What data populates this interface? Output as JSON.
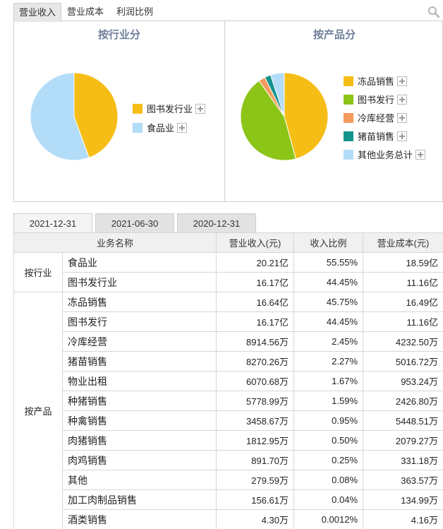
{
  "top_tabs": [
    "营业收入",
    "营业成本",
    "利润比例"
  ],
  "date_tabs": [
    "2021-12-31",
    "2021-06-30",
    "2020-12-31"
  ],
  "chart_data": [
    {
      "type": "pie",
      "title": "按行业分",
      "labels": [
        "图书发行业",
        "食品业"
      ],
      "values": [
        44.45,
        55.55
      ],
      "colors": [
        "#f6bd16",
        "#b3dcf8"
      ]
    },
    {
      "type": "pie",
      "title": "按产品分",
      "labels": [
        "冻品销售",
        "图书发行",
        "冷库经营",
        "猪苗销售",
        "其他业务总计"
      ],
      "values": [
        45.75,
        44.45,
        2.45,
        2.27,
        5.08
      ],
      "colors": [
        "#f6bd16",
        "#8cc417",
        "#f59a5e",
        "#14938c",
        "#b3dcf8"
      ]
    }
  ],
  "table": {
    "headers": [
      "业务名称",
      "营业收入(元)",
      "收入比例",
      "营业成本(元)"
    ],
    "groups": [
      {
        "label": "按行业",
        "rows": [
          [
            "食品业",
            "20.21亿",
            "55.55%",
            "18.59亿"
          ],
          [
            "图书发行业",
            "16.17亿",
            "44.45%",
            "11.16亿"
          ]
        ]
      },
      {
        "label": "按产品",
        "rows": [
          [
            "冻品销售",
            "16.64亿",
            "45.75%",
            "16.49亿"
          ],
          [
            "图书发行",
            "16.17亿",
            "44.45%",
            "11.16亿"
          ],
          [
            "冷库经营",
            "8914.56万",
            "2.45%",
            "4232.50万"
          ],
          [
            "猪苗销售",
            "8270.26万",
            "2.27%",
            "5016.72万"
          ],
          [
            "物业出租",
            "6070.68万",
            "1.67%",
            "953.24万"
          ],
          [
            "种猪销售",
            "5778.99万",
            "1.59%",
            "2426.80万"
          ],
          [
            "种禽销售",
            "3458.67万",
            "0.95%",
            "5448.51万"
          ],
          [
            "肉猪销售",
            "1812.95万",
            "0.50%",
            "2079.27万"
          ],
          [
            "肉鸡销售",
            "891.70万",
            "0.25%",
            "331.18万"
          ],
          [
            "其他",
            "279.59万",
            "0.08%",
            "363.57万"
          ],
          [
            "加工肉制品销售",
            "156.61万",
            "0.04%",
            "134.99万"
          ],
          [
            "酒类销售",
            "4.30万",
            "0.0012%",
            "4.16万"
          ]
        ]
      }
    ]
  }
}
